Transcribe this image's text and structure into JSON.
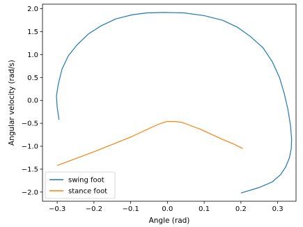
{
  "chart_data": {
    "type": "line",
    "title": "",
    "xlabel": "Angle (rad)",
    "ylabel": "Angular velocity (rad/s)",
    "xlim": [
      -0.34,
      0.35
    ],
    "ylim": [
      -2.2,
      2.1
    ],
    "xticks": [
      -0.3,
      -0.2,
      -0.1,
      0.0,
      0.1,
      0.2,
      0.3
    ],
    "xtick_labels": [
      "−0.3",
      "−0.2",
      "−0.1",
      "0.0",
      "0.1",
      "0.2",
      "0.3"
    ],
    "yticks": [
      -2.0,
      -1.5,
      -1.0,
      -0.5,
      0.0,
      0.5,
      1.0,
      1.5,
      2.0
    ],
    "ytick_labels": [
      "−2.0",
      "−1.5",
      "−1.0",
      "−0.5",
      "0.0",
      "0.5",
      "1.0",
      "1.5",
      "2.0"
    ],
    "grid": false,
    "legend_position": "lower-left",
    "series": [
      {
        "name": "swing foot",
        "color": "#1f77b4",
        "x": [
          -0.295,
          -0.3,
          -0.302,
          -0.297,
          -0.287,
          -0.27,
          -0.245,
          -0.215,
          -0.18,
          -0.14,
          -0.095,
          -0.055,
          -0.01,
          0.045,
          0.1,
          0.15,
          0.19,
          0.225,
          0.26,
          0.285,
          0.305,
          0.318,
          0.328,
          0.335,
          0.338,
          0.337,
          0.332,
          0.322,
          0.308,
          0.285,
          0.25,
          0.2
        ],
        "y": [
          -0.42,
          -0.15,
          0.1,
          0.35,
          0.68,
          0.97,
          1.22,
          1.45,
          1.63,
          1.78,
          1.87,
          1.91,
          1.92,
          1.91,
          1.85,
          1.75,
          1.6,
          1.4,
          1.15,
          0.85,
          0.5,
          0.15,
          -0.2,
          -0.55,
          -0.85,
          -1.05,
          -1.25,
          -1.45,
          -1.62,
          -1.78,
          -1.9,
          -2.02
        ]
      },
      {
        "name": "stance foot",
        "color": "#ff7f0e",
        "x": [
          -0.3,
          -0.25,
          -0.2,
          -0.15,
          -0.1,
          -0.06,
          -0.03,
          -0.01,
          0.0,
          0.02,
          0.04,
          0.06,
          0.09,
          0.12,
          0.15,
          0.18,
          0.205
        ],
        "y": [
          -1.42,
          -1.27,
          -1.12,
          -0.96,
          -0.8,
          -0.65,
          -0.54,
          -0.48,
          -0.46,
          -0.46,
          -0.48,
          -0.54,
          -0.63,
          -0.74,
          -0.85,
          -0.95,
          -1.05
        ]
      }
    ]
  }
}
